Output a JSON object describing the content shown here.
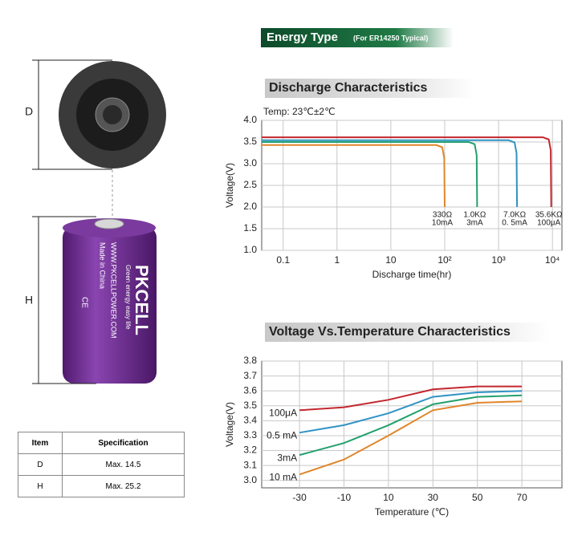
{
  "banner": {
    "title": "Energy Type",
    "subtitle": "(For ER14250 Typical)"
  },
  "battery": {
    "brand": "PKCELL",
    "slogan": "Green energy easy life",
    "url": "WWW.PKCELLPOWER.COM",
    "origin": "Made in China",
    "mark": "CE"
  },
  "dimensions": {
    "d_label": "D",
    "h_label": "H"
  },
  "table": {
    "header": [
      "Item",
      "Specification"
    ],
    "rows": [
      [
        "D",
        "Max. 14.5"
      ],
      [
        "H",
        "Max. 25.2"
      ]
    ]
  },
  "chart_data": [
    {
      "type": "line",
      "title": "Discharge Characteristics",
      "subtitle": "Temp: 23℃±2℃",
      "x_label": "Discharge time(hr)",
      "y_label": "Voltage(V)",
      "x_log": true,
      "grid": true,
      "xlim": [
        0.04,
        15000
      ],
      "ylim": [
        1.0,
        4.0
      ],
      "xticks": [
        0.1,
        1,
        10,
        {
          "value": 100,
          "label": "10²"
        },
        {
          "value": 1000,
          "label": "10³"
        },
        {
          "value": 10000,
          "label": "10⁴"
        }
      ],
      "yticks": [
        {
          "value": 1,
          "label": "1.0"
        },
        1.5,
        {
          "value": 2,
          "label": "2.0"
        },
        2.5,
        {
          "value": 3,
          "label": "3.0"
        },
        3.5,
        {
          "value": 4,
          "label": "4.0"
        }
      ],
      "series": [
        {
          "name": "330Ω",
          "current": "10mA",
          "color": "#e0862a",
          "x": [
            0.04,
            70,
            90,
            98,
            100
          ],
          "values": [
            3.43,
            3.43,
            3.38,
            3.13,
            2.0
          ]
        },
        {
          "name": "1.0KΩ",
          "current": "3mA",
          "color": "#23a06e",
          "x": [
            0.04,
            280,
            360,
            392,
            400
          ],
          "values": [
            3.5,
            3.5,
            3.45,
            3.2,
            2.0
          ]
        },
        {
          "name": "7.0KΩ",
          "current": "0. 5mA",
          "color": "#2f93c4",
          "x": [
            0.04,
            1540,
            1980,
            2156,
            2200
          ],
          "values": [
            3.54,
            3.54,
            3.49,
            3.24,
            2.0
          ]
        },
        {
          "name": "35.6KΩ",
          "current": "100μA",
          "color": "#c4262e",
          "x": [
            0.04,
            6650,
            8550,
            9310,
            9500
          ],
          "values": [
            3.61,
            3.61,
            3.56,
            3.31,
            2.0
          ]
        }
      ]
    },
    {
      "type": "line",
      "title": "Voltage Vs.Temperature Characteristics",
      "x_label": "Temperature (℃)",
      "y_label": "Voltage(V)",
      "x_log": false,
      "grid": true,
      "xlim": [
        -47,
        88
      ],
      "ylim": [
        2.95,
        3.8
      ],
      "xticks": [
        -30,
        -10,
        10,
        30,
        50,
        70
      ],
      "yticks": [
        {
          "value": 3,
          "label": "3.0"
        },
        3.1,
        3.2,
        3.3,
        3.4,
        3.5,
        3.6,
        3.7,
        3.8
      ],
      "series": [
        {
          "name": "100μA",
          "color": "#c4262e",
          "x": [
            -30,
            -10,
            10,
            30,
            50,
            70
          ],
          "values": [
            3.47,
            3.49,
            3.54,
            3.61,
            3.63,
            3.63
          ]
        },
        {
          "name": "0.5 mA",
          "color": "#2f93c4",
          "x": [
            -30,
            -10,
            10,
            30,
            50,
            70
          ],
          "values": [
            3.32,
            3.37,
            3.45,
            3.56,
            3.59,
            3.6
          ]
        },
        {
          "name": "3mA",
          "color": "#23a06e",
          "x": [
            -30,
            -10,
            10,
            30,
            50,
            70
          ],
          "values": [
            3.17,
            3.25,
            3.37,
            3.51,
            3.56,
            3.57
          ]
        },
        {
          "name": "10 mA",
          "color": "#e0862a",
          "x": [
            -30,
            -10,
            10,
            30,
            50,
            70
          ],
          "values": [
            3.04,
            3.14,
            3.3,
            3.47,
            3.52,
            3.53
          ]
        }
      ]
    }
  ]
}
